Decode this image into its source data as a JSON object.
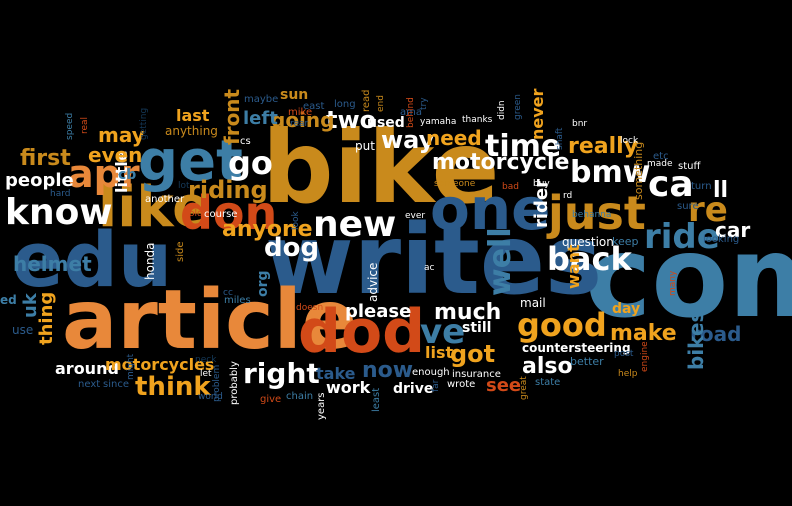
{
  "words": {
    "com": "com",
    "writes": "writes",
    "bike": "bike",
    "edu": "edu",
    "article": "article",
    "like": "like",
    "one": "one",
    "dod": "dod",
    "just": "just",
    "get": "get",
    "know": "know",
    "new": "new",
    "ca": "ca",
    "apr": "apr",
    "don": "don",
    "ride": "ride",
    "time": "time",
    "bmw": "bmw",
    "good": "good",
    "re": "re",
    "go": "go",
    "back": "back",
    "motorcycle": "motorcycle",
    "way": "way",
    "dog": "dog",
    "riding": "riding",
    "ve": "ve",
    "got": "got",
    "well": "well",
    "also": "also",
    "right": "right",
    "think": "think",
    "make": "make",
    "helmet": "helmet",
    "two": "two",
    "going": "going",
    "first": "first",
    "people": "people",
    "really": "really",
    "need": "need",
    "anyone": "anyone",
    "much": "much",
    "please": "please",
    "road": "road",
    "car": "car",
    "bikes": "bikes",
    "ll": "ll",
    "front": "front",
    "rider": "rider",
    "never": "never",
    "little": "little",
    "even": "even",
    "may": "may",
    "last": "last",
    "left": "left",
    "used": "used",
    "thing": "thing",
    "see": "see",
    "now": "now",
    "take": "take",
    "work": "work",
    "drive": "drive",
    "around": "around",
    "motorcycles": "motorcycles",
    "list": "list",
    "still": "still",
    "want": "want",
    "day": "day",
    "uk": "uk",
    "countersteering": "countersteering",
    "org": "org",
    "advice": "advice",
    "mail": "mail",
    "question": "question",
    "sun": "sun",
    "put": "put",
    "honda": "honda",
    "anything": "anything",
    "cb": "cb",
    "another": "another",
    "insurance": "insurance",
    "wrote": "wrote",
    "enough": "enough",
    "state": "state",
    "better": "better",
    "something": "something",
    "keep": "keep",
    "looking": "looking",
    "stuff": "stuff",
    "turn": "turn",
    "sure": "sure",
    "etc": "etc",
    "ed": "ed",
    "use": "use",
    "next": "next",
    "since": "since",
    "give": "give",
    "chain": "chain",
    "years": "years",
    "least": "least",
    "probably": "probably",
    "problem": "problem",
    "might": "might",
    "world": "world",
    "let": "let",
    "miles": "miles",
    "course": "course",
    "old": "old",
    "side": "side",
    "cc": "cc",
    "cs": "cs",
    "maybe": "maybe",
    "mike": "mike",
    "rear": "rear",
    "east": "east",
    "long": "long",
    "read": "read",
    "end": "end",
    "ama": "ama",
    "yamaha": "yamaha",
    "thanks": "thanks",
    "try": "try",
    "behind": "behind",
    "didn": "didn",
    "green": "green",
    "bad": "bad",
    "buy": "buy",
    "shaft": "shaft",
    "bnr": "bnr",
    "someone": "someone",
    "behanna": "behanna",
    "lock": "lock",
    "made": "made",
    "rd": "rd",
    "ever": "ever",
    "ac": "ac",
    "doesn": "doesn",
    "far": "far",
    "great": "great",
    "post": "post",
    "engine": "engine",
    "help": "help",
    "many": "many",
    "hard": "hard",
    "speed": "speed",
    "real": "real",
    "getting": "getting",
    "lot": "lot",
    "look": "look",
    "neck": "neck"
  }
}
